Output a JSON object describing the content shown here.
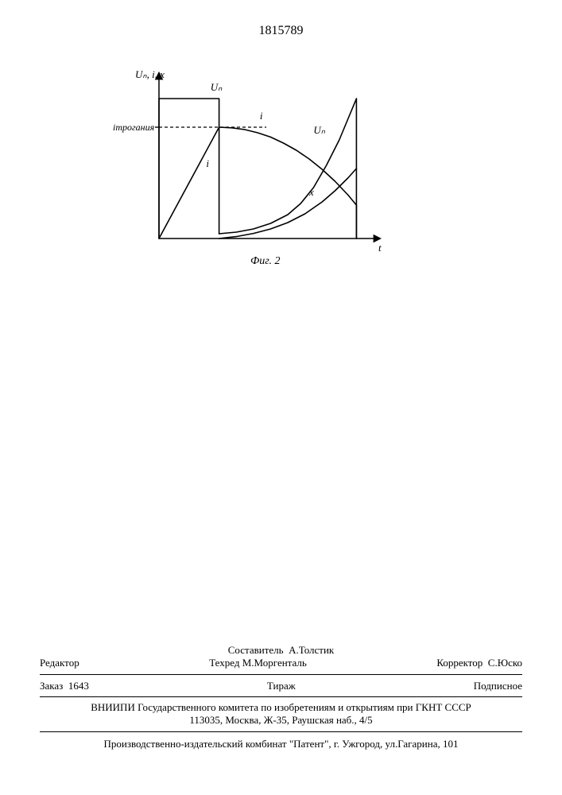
{
  "header": {
    "patent_number": "1815789"
  },
  "chart": {
    "type": "line",
    "caption": "Фиг. 2",
    "axes": {
      "y_label": "Uₙ, i, x",
      "x_label": "t",
      "xlim": [
        0,
        100
      ],
      "ylim": [
        0,
        100
      ],
      "axis_color": "#000000",
      "axis_width": 1.5
    },
    "dashed_level": {
      "label": "iтрогания",
      "y": 70,
      "x_from": 0,
      "x_to": 50,
      "dash": "4,3",
      "color": "#000000"
    },
    "curves": {
      "un_step": {
        "label": "Uₙ",
        "label_pos": {
          "x": 24,
          "y": 93
        },
        "color": "#000000",
        "width": 1.6,
        "points": [
          [
            0,
            0
          ],
          [
            0,
            88
          ],
          [
            28,
            88
          ],
          [
            28,
            3
          ]
        ]
      },
      "i_rise": {
        "label": "i",
        "label_pos": {
          "x": 22,
          "y": 45
        },
        "color": "#000000",
        "width": 1.6,
        "points": [
          [
            0,
            0
          ],
          [
            28,
            70
          ]
        ]
      },
      "i_decay": {
        "label": "i",
        "label_pos": {
          "x": 47,
          "y": 75
        },
        "color": "#000000",
        "width": 1.6,
        "points": [
          [
            28,
            70
          ],
          [
            34,
            69.6
          ],
          [
            40,
            68.5
          ],
          [
            46,
            66.5
          ],
          [
            52,
            63.8
          ],
          [
            58,
            60.0
          ],
          [
            64,
            55.5
          ],
          [
            70,
            50.0
          ],
          [
            76,
            43.5
          ],
          [
            82,
            36.0
          ],
          [
            88,
            27.5
          ],
          [
            92,
            21.0
          ],
          [
            92,
            0
          ]
        ]
      },
      "un_rise": {
        "label": "Uₙ",
        "label_pos": {
          "x": 72,
          "y": 66
        },
        "color": "#000000",
        "width": 1.6,
        "points": [
          [
            28,
            3
          ],
          [
            36,
            4
          ],
          [
            44,
            6
          ],
          [
            52,
            9.5
          ],
          [
            60,
            15
          ],
          [
            66,
            22
          ],
          [
            72,
            32
          ],
          [
            78,
            46
          ],
          [
            84,
            62
          ],
          [
            88,
            75
          ],
          [
            92,
            88
          ],
          [
            92,
            0
          ]
        ]
      },
      "x_rise": {
        "label": "x",
        "label_pos": {
          "x": 70,
          "y": 27
        },
        "color": "#000000",
        "width": 1.6,
        "points": [
          [
            28,
            0
          ],
          [
            36,
            1.2
          ],
          [
            44,
            3.2
          ],
          [
            52,
            6.0
          ],
          [
            60,
            10.0
          ],
          [
            68,
            15.5
          ],
          [
            76,
            23.0
          ],
          [
            82,
            30.0
          ],
          [
            88,
            38.0
          ],
          [
            92,
            44.0
          ]
        ]
      }
    },
    "background_color": "#ffffff",
    "font_family": "Times, serif",
    "label_fontsize": 13
  },
  "footer": {
    "row1_left": "",
    "row1_center_label": "Составитель",
    "row1_center_name": "А.Толстик",
    "row2_left_label": "Редактор",
    "row2_center_label": "Техред",
    "row2_center_name": "М.Моргенталь",
    "row2_right_label": "Корректор",
    "row2_right_name": "С.Юско",
    "row3_left_label": "Заказ",
    "row3_left_value": "1643",
    "row3_center": "Тираж",
    "row3_right": "Подписное",
    "row4": "ВНИИПИ Государственного комитета по изобретениям и открытиям при ГКНТ СССР",
    "row5": "113035, Москва, Ж-35, Раушская наб., 4/5",
    "row6": "Производственно-издательский комбинат \"Патент\", г. Ужгород, ул.Гагарина, 101"
  }
}
